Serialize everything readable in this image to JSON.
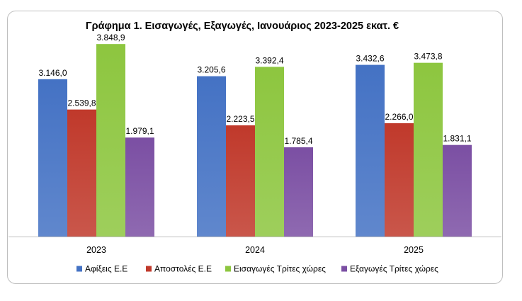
{
  "chart_data": {
    "type": "bar",
    "title": "Γράφημα 1. Εισαγωγές, Εξαγωγές, Ιανουάριος 2023-2025 εκατ. €",
    "categories": [
      "2023",
      "2024",
      "2025"
    ],
    "series": [
      {
        "name": "Αφίξεις Ε.Ε",
        "color": "#4472c4",
        "values": [
          3146.0,
          3205.6,
          3432.6
        ],
        "labels": [
          "3.146,0",
          "3.205,6",
          "3.432,6"
        ]
      },
      {
        "name": "Αποστολές  Ε.Ε",
        "color": "#c0392b",
        "values": [
          2539.8,
          2223.5,
          2266.0
        ],
        "labels": [
          "2.539,8",
          "2.223,5",
          "2.266,0"
        ]
      },
      {
        "name": "Εισαγωγές Τρίτες χώρες",
        "color": "#8dc63f",
        "values": [
          3848.9,
          3392.4,
          3473.8
        ],
        "labels": [
          "3.848,9",
          "3.392,4",
          "3.473,8"
        ]
      },
      {
        "name": "Εξαγωγές Τρίτες χώρες",
        "color": "#7b4fa3",
        "values": [
          1979.1,
          1785.4,
          1831.1
        ],
        "labels": [
          "1.979,1",
          "1.785,4",
          "1.831,1"
        ]
      }
    ],
    "ylim": [
      0,
      4000
    ],
    "grid": false,
    "legend": "bottom"
  }
}
